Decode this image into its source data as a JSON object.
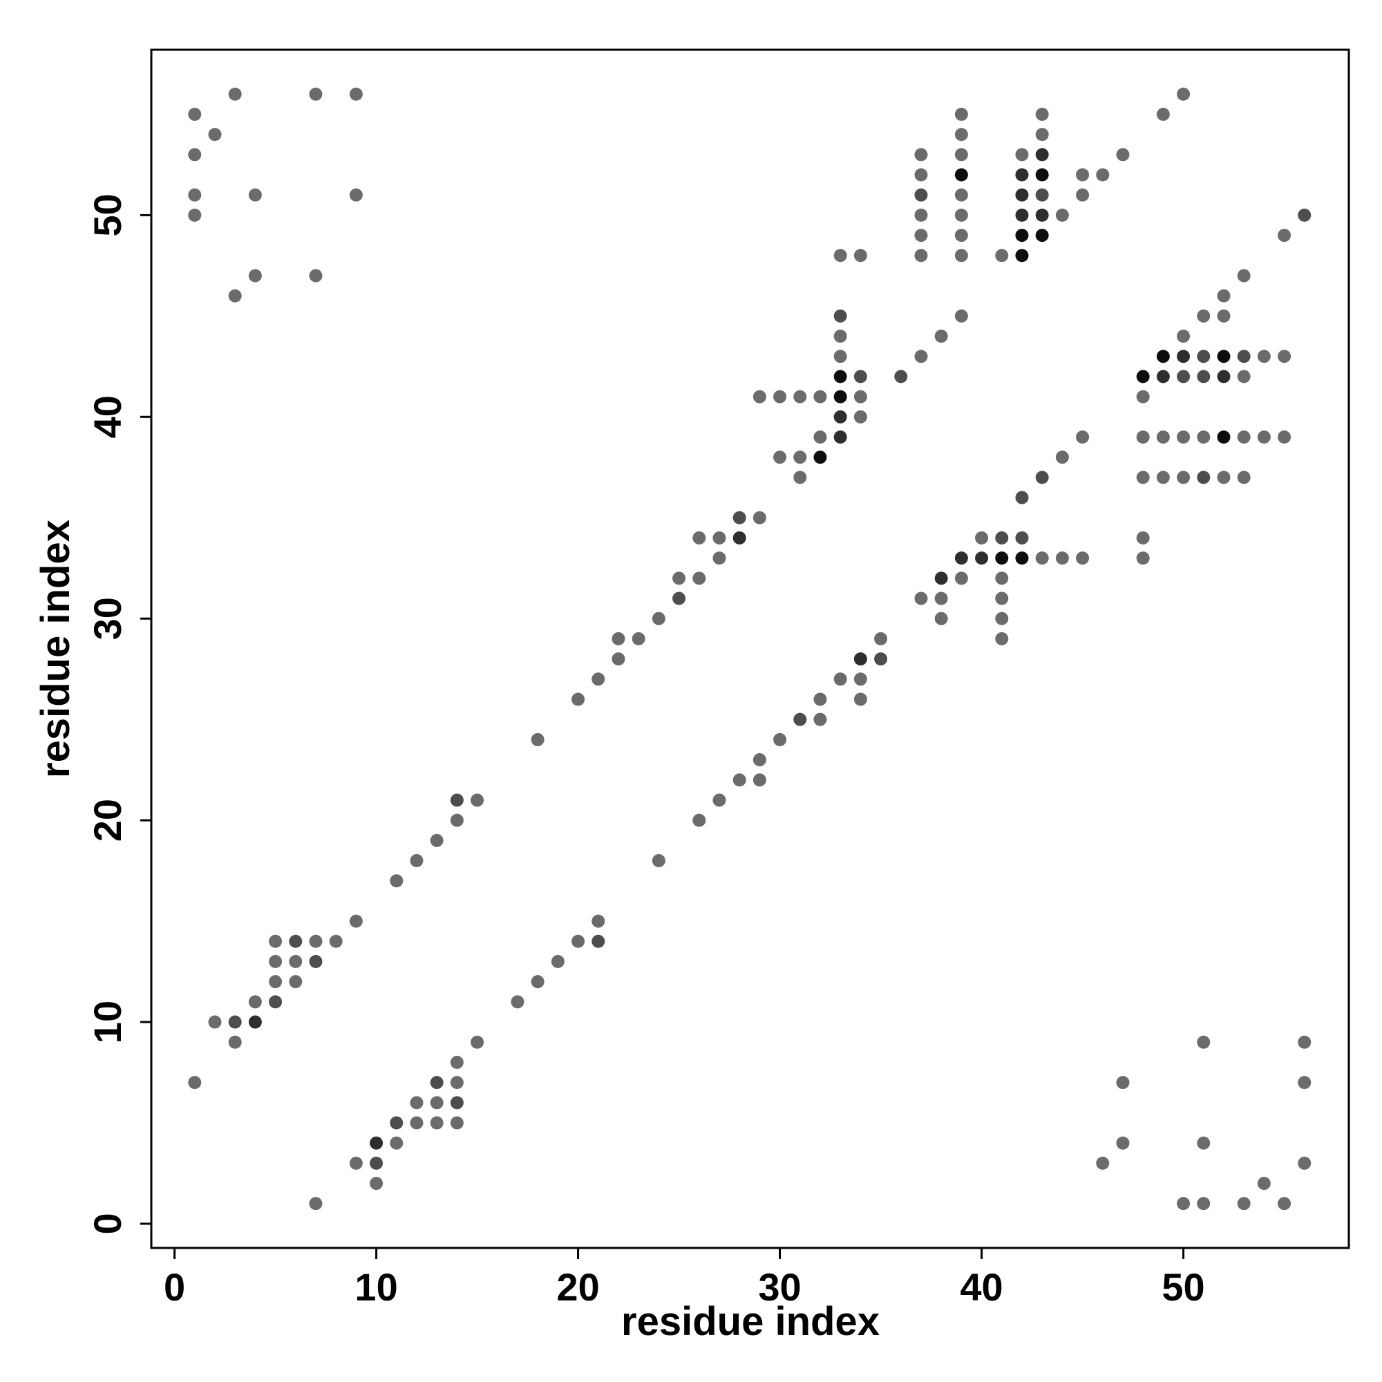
{
  "chart_data": {
    "type": "scatter",
    "x_label": "residue index",
    "y_label": "residue index",
    "xlim": [
      -1.15,
      58.2
    ],
    "ylim": [
      -1.2,
      58.2
    ],
    "xticks": [
      0,
      10,
      20,
      30,
      40,
      50
    ],
    "yticks": [
      0,
      10,
      20,
      30,
      40,
      50
    ],
    "series": [
      {
        "color": "#6b6b6b",
        "x": [
          3,
          7,
          9,
          50,
          1,
          39,
          43,
          49,
          2,
          39,
          43,
          1,
          37,
          39,
          42,
          47,
          37,
          45,
          46,
          1,
          4,
          9,
          39,
          45,
          1,
          37,
          39,
          44,
          37,
          39,
          55,
          33,
          34,
          37,
          39,
          41,
          4,
          7,
          53,
          3,
          52,
          39,
          51,
          52,
          33,
          38,
          50,
          33,
          37,
          54,
          55,
          53,
          29,
          30,
          31,
          32,
          34,
          48,
          34,
          32,
          45,
          48,
          49,
          50,
          51,
          53,
          54,
          55,
          30,
          31,
          44,
          31,
          48,
          49,
          50,
          52,
          53,
          29,
          26,
          27,
          40,
          48,
          27,
          43,
          44,
          45,
          48,
          25,
          26,
          39,
          41,
          37,
          38,
          41,
          24,
          38,
          41,
          22,
          23,
          35,
          41,
          22,
          21,
          33,
          34,
          20,
          32,
          34,
          32,
          18,
          30,
          29,
          28,
          29,
          15,
          27,
          14,
          26,
          13,
          12,
          24,
          11,
          9,
          21,
          5,
          7,
          8,
          20,
          5,
          6,
          19,
          5,
          6,
          18,
          4,
          17,
          2,
          3,
          15,
          51,
          56,
          14,
          1,
          14,
          47,
          56,
          12,
          13,
          12,
          13,
          14,
          11,
          47,
          51,
          9,
          46,
          56,
          10,
          54,
          7,
          50,
          51,
          53,
          55
        ],
        "y": [
          56,
          56,
          56,
          56,
          55,
          55,
          55,
          55,
          54,
          54,
          54,
          53,
          53,
          53,
          53,
          53,
          52,
          52,
          52,
          51,
          51,
          51,
          51,
          51,
          50,
          50,
          50,
          50,
          49,
          49,
          49,
          48,
          48,
          48,
          48,
          48,
          47,
          47,
          47,
          46,
          46,
          45,
          45,
          45,
          44,
          44,
          44,
          43,
          43,
          43,
          43,
          42,
          41,
          41,
          41,
          41,
          41,
          41,
          40,
          39,
          39,
          39,
          39,
          39,
          39,
          39,
          39,
          39,
          38,
          38,
          38,
          37,
          37,
          37,
          37,
          37,
          37,
          35,
          34,
          34,
          34,
          34,
          33,
          33,
          33,
          33,
          33,
          32,
          32,
          32,
          32,
          31,
          31,
          31,
          30,
          30,
          30,
          29,
          29,
          29,
          29,
          28,
          27,
          27,
          27,
          26,
          26,
          26,
          25,
          24,
          24,
          23,
          22,
          22,
          21,
          21,
          20,
          20,
          19,
          18,
          18,
          17,
          15,
          15,
          14,
          14,
          14,
          14,
          13,
          13,
          13,
          12,
          12,
          12,
          11,
          11,
          10,
          9,
          9,
          9,
          9,
          8,
          7,
          7,
          7,
          7,
          6,
          6,
          5,
          5,
          5,
          4,
          4,
          4,
          3,
          3,
          3,
          2,
          2,
          1,
          1,
          1,
          1,
          1
        ]
      },
      {
        "color": "#4d4d4d",
        "x": [
          56,
          43,
          37,
          33,
          51,
          53,
          34,
          36,
          50,
          51,
          43,
          51,
          42,
          28,
          41,
          42,
          25,
          35,
          31,
          14,
          6,
          21,
          7,
          5,
          3,
          13,
          14,
          11,
          10
        ],
        "y": [
          50,
          51,
          51,
          45,
          43,
          43,
          42,
          42,
          42,
          42,
          37,
          37,
          36,
          35,
          34,
          34,
          31,
          28,
          25,
          21,
          14,
          14,
          13,
          11,
          10,
          7,
          6,
          5,
          3
        ]
      },
      {
        "color": "#2e2e2e",
        "x": [
          43,
          42,
          42,
          42,
          43,
          50,
          49,
          52,
          33,
          33,
          28,
          39,
          40,
          38,
          34,
          4,
          10
        ],
        "y": [
          53,
          52,
          51,
          50,
          50,
          43,
          42,
          42,
          40,
          39,
          34,
          33,
          33,
          32,
          28,
          10,
          4
        ]
      },
      {
        "color": "#0d0d0d",
        "x": [
          39,
          43,
          42,
          43,
          42,
          49,
          52,
          33,
          48,
          33,
          52,
          32,
          41,
          42
        ],
        "y": [
          52,
          52,
          49,
          49,
          48,
          43,
          43,
          42,
          42,
          41,
          39,
          38,
          33,
          33
        ]
      }
    ]
  }
}
